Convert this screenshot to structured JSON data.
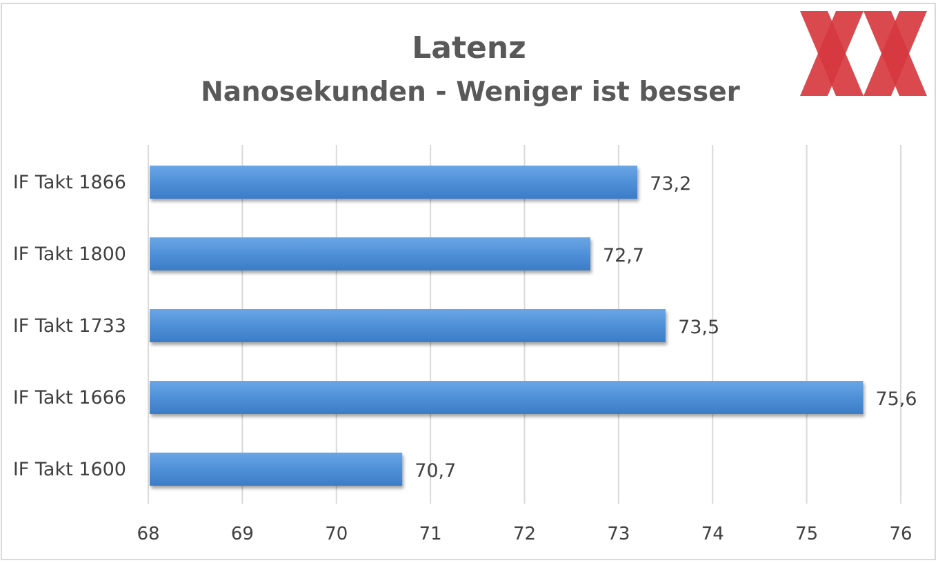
{
  "chart_data": {
    "type": "bar",
    "orientation": "horizontal",
    "title": "Latenz",
    "subtitle": "Nanosekunden  - Weniger ist besser",
    "categories": [
      "IF Takt 1866",
      "IF Takt 1800",
      "IF Takt 1733",
      "IF Takt 1666",
      "IF Takt 1600"
    ],
    "values": [
      73.2,
      72.7,
      73.5,
      75.6,
      70.7
    ],
    "value_labels": [
      "73,2",
      "72,7",
      "73,5",
      "75,6",
      "70,7"
    ],
    "xlim": [
      68,
      76
    ],
    "xticks": [
      "68",
      "69",
      "70",
      "71",
      "72",
      "73",
      "74",
      "75",
      "76"
    ],
    "grid": "vertical",
    "bar_color": "#4a8fd8",
    "legend": "none"
  },
  "logo": {
    "name": "xx-logo-icon",
    "color": "#d63a3f"
  }
}
